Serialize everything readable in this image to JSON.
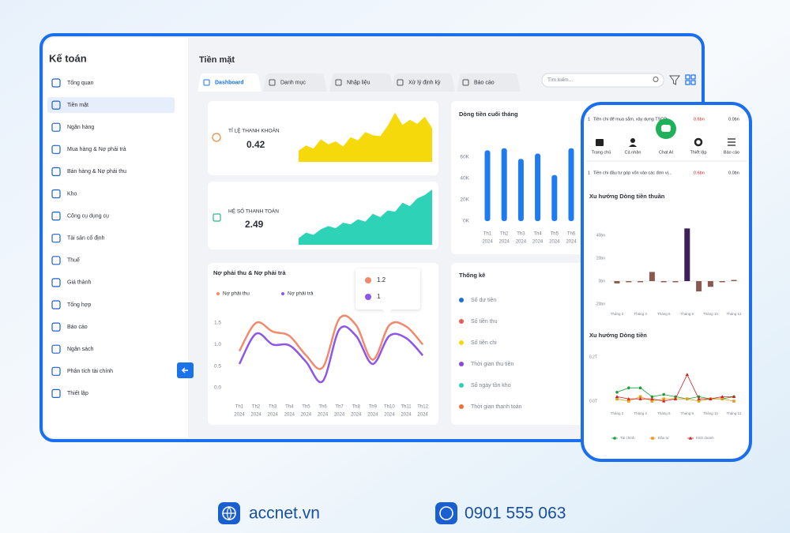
{
  "sidebar": {
    "title": "Kế toán",
    "active": 1,
    "items": [
      "Tổng quan",
      "Tiền mặt",
      "Ngân hàng",
      "Mua hàng & Nợ phải trả",
      "Bán hàng & Nợ phải thu",
      "Kho",
      "Công cụ dụng cụ",
      "Tài sản cố định",
      "Thuế",
      "Giá thành",
      "Tổng hợp",
      "Báo cáo",
      "Ngân sách",
      "Phân tích tài chính",
      "Thiết lập"
    ]
  },
  "header": {
    "title": "Tiền mặt",
    "active_tab": 0,
    "tabs": [
      "Dashboard",
      "Danh mục",
      "Nhập liệu",
      "Xử lý định kỳ",
      "Báo cáo"
    ],
    "search_placeholder": "Tìm kiếm..."
  },
  "kpis": [
    {
      "label": "TỈ LỆ THANH KHOẢN",
      "value": 0.42,
      "color": "#f5d90a",
      "ylim": [
        0,
        100
      ],
      "trend": [
        22,
        32,
        26,
        44,
        34,
        40,
        30,
        48,
        42,
        58,
        52,
        50,
        70,
        96,
        72,
        82,
        74,
        88,
        66
      ]
    },
    {
      "label": "HỆ SỐ THANH TOÁN",
      "value": 2.49,
      "color": "#2ed3b7",
      "ylim": [
        0,
        100
      ],
      "trend": [
        12,
        22,
        18,
        28,
        34,
        30,
        40,
        37,
        46,
        42,
        56,
        50,
        62,
        60,
        76,
        70,
        84,
        90,
        100
      ]
    }
  ],
  "cash_chart": {
    "title": "Dòng tiền cuối tháng",
    "color": "#1e7bf0",
    "ylim": [
      0,
      70
    ],
    "yticks": [
      {
        "value": 0,
        "label": "0K"
      },
      {
        "value": 20,
        "label": "20K"
      },
      {
        "value": 40,
        "label": "40K"
      },
      {
        "value": 60,
        "label": "60K"
      }
    ],
    "x_labels": [
      [
        "Th1",
        "2024"
      ],
      [
        "Th2",
        "2024"
      ],
      [
        "Th3",
        "2024"
      ],
      [
        "Th4",
        "2024"
      ],
      [
        "Th5",
        "2024"
      ],
      [
        "Th6",
        "2024"
      ]
    ],
    "values": [
      66,
      68,
      58,
      63,
      43,
      68
    ]
  },
  "debt_chart": {
    "title": "Nợ phải thu & Nợ phải trả",
    "ylim": [
      0,
      1.6
    ],
    "yticks": [
      {
        "value": 0,
        "label": "0.0"
      },
      0.5,
      {
        "value": 1,
        "label": "1.0"
      },
      1.5
    ],
    "x_labels": [
      [
        "Th1",
        "2024"
      ],
      [
        "Th2",
        "2024"
      ],
      [
        "Th3",
        "2024"
      ],
      [
        "Th4",
        "2024"
      ],
      [
        "Th5",
        "2024"
      ],
      [
        "Th6",
        "2024"
      ],
      [
        "Th7",
        "2024"
      ],
      [
        "Th8",
        "2024"
      ],
      [
        "Th9",
        "2024"
      ],
      [
        "Th10",
        "2024"
      ],
      [
        "Th11",
        "2024"
      ],
      [
        "Th12",
        "2024"
      ]
    ],
    "series": [
      {
        "name": "Nợ phải thu",
        "color": "#f08a6e",
        "values": [
          0.85,
          1.5,
          1.3,
          1.2,
          0.75,
          0.47,
          1.6,
          1.45,
          0.65,
          1.45,
          1.42,
          1.0
        ]
      },
      {
        "name": "Nợ phải trả",
        "color": "#8e56e8",
        "values": [
          0.55,
          1.25,
          1.0,
          0.98,
          0.6,
          0.15,
          1.35,
          1.2,
          0.55,
          1.2,
          1.15,
          0.75
        ]
      }
    ],
    "tooltip": [
      1.2,
      1
    ]
  },
  "stats": {
    "title": "Thống kê",
    "items": [
      {
        "name": "Số dư tiền",
        "color": "#1a6fd8"
      },
      {
        "name": "Số tiền thu",
        "color": "#e85a5a"
      },
      {
        "name": "Số tiền chi",
        "color": "#f5d80a"
      },
      {
        "name": "Thời gian thu tiền",
        "color": "#8b45e0"
      },
      {
        "name": "Số ngày tồn kho",
        "color": "#2ed3b7"
      },
      {
        "name": "Thời gian thanh toán",
        "color": "#f0703a"
      }
    ]
  },
  "phone": {
    "rows": [
      [
        1,
        "Tiền chi để mua sắm, xây dựng TSCĐ",
        "0.6bn",
        "0.0bn"
      ],
      [
        1,
        "Tiền chi đầu tư góp vốn vào các đơn vị...",
        "0.6bn",
        "0.0bn"
      ]
    ],
    "nav": [
      "Trang chủ",
      "Cá nhân",
      "Chat AI",
      "Thiết lập",
      "Báo cáo"
    ],
    "net_cash_chart": {
      "title": "Xu hướng Dòng tiền thuần",
      "color": "#8a5a50",
      "highlight_color": "#3d1f5c",
      "highlight_index": 6,
      "ylim": [
        -25,
        50
      ],
      "yticks": [
        {
          "value": 40,
          "label": "40bn"
        },
        {
          "value": 20,
          "label": "20bn"
        },
        {
          "value": 0,
          "label": "0bn"
        },
        {
          "value": -20,
          "label": "-20bn"
        }
      ],
      "categories": [
        "Tháng 2",
        null,
        "Tháng 4",
        null,
        "Tháng 6",
        null,
        "Tháng 8",
        null,
        "Tháng 10",
        null,
        "Tháng 12"
      ],
      "values": [
        -2,
        -1,
        -1,
        8,
        -1,
        -1,
        46,
        -9,
        -5,
        -1,
        1
      ]
    },
    "cash_trend_chart": {
      "title": "Xu hướng Dòng tiền",
      "ylim": [
        -0.03,
        0.22
      ],
      "yticks": [
        {
          "value": 0.2,
          "label": "0.2T"
        },
        {
          "value": 0,
          "label": "0.0T"
        }
      ],
      "categories": [
        "Tháng 2",
        null,
        "Tháng 4",
        null,
        "Tháng 6",
        null,
        "Tháng 8",
        null,
        "Tháng 10",
        null,
        "Tháng 12"
      ],
      "series": [
        {
          "name": "Tài chính",
          "color": "#1f9d3a",
          "marker": "circle",
          "values": [
            0.04,
            0.06,
            0.06,
            0.02,
            0.03,
            0.02,
            0.01,
            0.02,
            0.01,
            0.01,
            0.02
          ]
        },
        {
          "name": "Đầu tư",
          "color": "#e0a020",
          "marker": "square",
          "values": [
            0.01,
            0.0,
            0.02,
            0.0,
            0.01,
            0.01,
            0.01,
            0.0,
            0.01,
            0.01,
            0.0
          ]
        },
        {
          "name": "Kinh doanh",
          "color": "#d02020",
          "marker": "triangle",
          "values": [
            0.02,
            0.01,
            0.01,
            0.01,
            0.0,
            0.01,
            0.12,
            0.01,
            0.01,
            0.02,
            0.02
          ]
        }
      ]
    }
  },
  "footer": {
    "website": "accnet.vn",
    "phone": "0901 555 063"
  }
}
